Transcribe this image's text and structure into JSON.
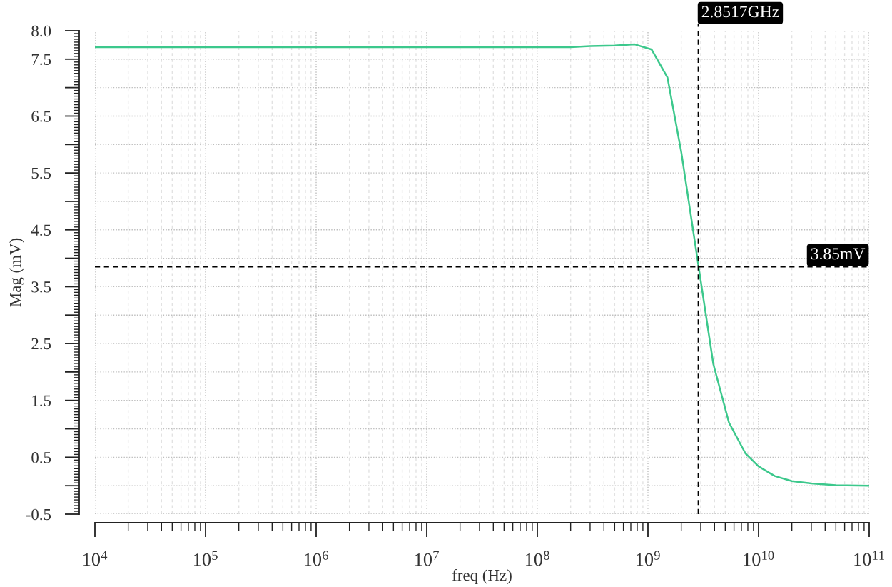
{
  "chart_data": {
    "type": "line",
    "xlabel": "freq (Hz)",
    "ylabel": "Mag (mV)",
    "log": "x",
    "grid": true,
    "xlim": [
      10000,
      100000000000
    ],
    "xticks": [
      {
        "value": 10000,
        "label": "10$^{4}$"
      },
      {
        "value": 100000,
        "label": "10$^{5}$"
      },
      {
        "value": 1000000,
        "label": "10$^{6}$"
      },
      {
        "value": 10000000,
        "label": "10$^{7}$"
      },
      {
        "value": 100000000,
        "label": "10$^{8}$"
      },
      {
        "value": 1000000000,
        "label": "10$^{9}$"
      },
      {
        "value": 10000000000,
        "label": "10$^{10}$"
      },
      {
        "value": 100000000000,
        "label": "10$^{11}$"
      }
    ],
    "ylim": [
      -0.5,
      8
    ],
    "yticks": [
      {
        "value": -0.5,
        "label": "-0.5"
      },
      {
        "value": 0,
        "label": null
      },
      0.5,
      {
        "value": 1,
        "label": null
      },
      1.5,
      {
        "value": 2,
        "label": null
      },
      2.5,
      {
        "value": 3,
        "label": null
      },
      3.5,
      {
        "value": 4,
        "label": null
      },
      4.5,
      {
        "value": 5,
        "label": null
      },
      5.5,
      {
        "value": 6,
        "label": null
      },
      6.5,
      {
        "value": 7,
        "label": null
      },
      7.5,
      {
        "value": 8,
        "label": "8.0"
      }
    ],
    "x": [
      10000,
      200000000,
      300000000,
      500000000,
      760000000,
      1080000000,
      1500000000,
      2000000000,
      3900000000,
      5400000000,
      7600000000,
      10000000000,
      14000000000,
      20000000000,
      30000000000,
      50000000000,
      100000000000
    ],
    "series": [
      {
        "color": "#3cc88c",
        "values": [
          7.71,
          7.71,
          7.73,
          7.74,
          7.76,
          7.67,
          7.18,
          5.87,
          2.14,
          1.11,
          0.57,
          0.34,
          0.17,
          0.08,
          0.04,
          0.01,
          0.0
        ]
      }
    ],
    "ref_lines": [
      {
        "axis": "x",
        "value": 2851700000,
        "label": "2.8517GHz",
        "color": "#000000",
        "line_style": "dashed"
      },
      {
        "axis": "y",
        "value": 3.85,
        "label": "3.85mV",
        "color": "#000000",
        "line_style": "dashed"
      }
    ]
  }
}
